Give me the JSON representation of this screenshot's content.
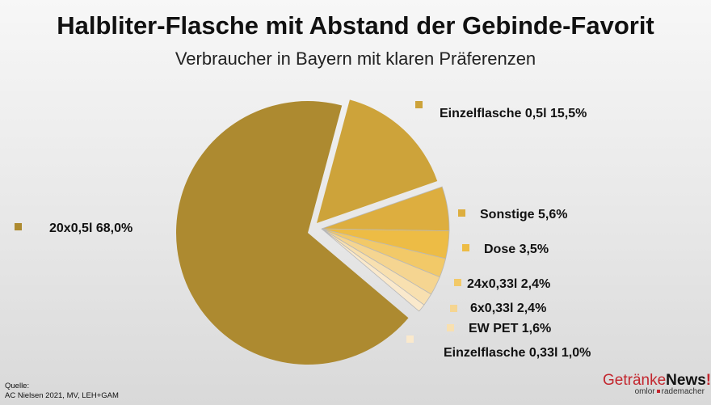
{
  "chart_data": {
    "type": "pie",
    "title": "Halbliter-Flasche mit Abstand der Gebinde-Favorit",
    "subtitle": "Verbraucher in Bayern mit klaren Präferenzen",
    "slices": [
      {
        "label": "Einzelflasche 0,5l 15,5%",
        "value": 15.5,
        "color": "#CDA33A",
        "exploded": true
      },
      {
        "label": "Sonstige 5,6%",
        "value": 5.6,
        "color": "#DDAE3F"
      },
      {
        "label": "Dose 3,5%",
        "value": 3.5,
        "color": "#EDBC45"
      },
      {
        "label": "24x0,33l 2,4%",
        "value": 2.4,
        "color": "#F2C968"
      },
      {
        "label": "6x0,33l 2,4%",
        "value": 2.4,
        "color": "#F5D591"
      },
      {
        "label": "EW PET 1,6%",
        "value": 1.6,
        "color": "#F8E0B0"
      },
      {
        "label": "Einzelflasche 0,33l 1,0%",
        "value": 1.0,
        "color": "#FAE9CC"
      },
      {
        "label": "20x0,5l  68,0%",
        "value": 68.0,
        "color": "#AD8A30",
        "exploded": true
      }
    ],
    "legend": "labels beside slices"
  },
  "source": {
    "line1": "Quelle:",
    "line2": "AC Nielsen 2021, MV, LEH+GAM"
  },
  "logo": {
    "part1": "Getränke",
    "part2": "News",
    "part3": "!",
    "tagline1": "omlor",
    "tagline2": "rademacher"
  }
}
